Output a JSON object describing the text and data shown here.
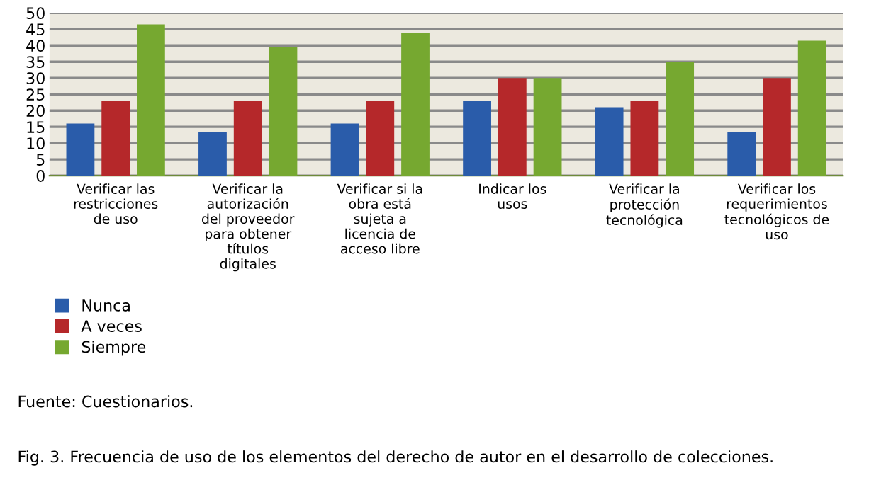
{
  "chart_data": {
    "type": "bar",
    "categories": [
      "Verificar las restricciones de uso",
      "Verificar la autorización del proveedor para obtener títulos digitales",
      "Verificar si la obra está sujeta a licencia de acceso libre",
      "Indicar los usos",
      "Verificar la protección tecnológica",
      "Verificar los requerimientos tecnológicos de uso"
    ],
    "series": [
      {
        "name": "Nunca",
        "color": "#2a5caa",
        "values": [
          16,
          13.5,
          16,
          23,
          21,
          13.5
        ]
      },
      {
        "name": "A veces",
        "color": "#b5282a",
        "values": [
          23,
          23,
          23,
          30,
          23,
          30
        ]
      },
      {
        "name": "Siempre",
        "color": "#76a830",
        "values": [
          46.5,
          39.5,
          44,
          30,
          35,
          41.5
        ]
      }
    ],
    "ylim": [
      0,
      50
    ],
    "yticks": [
      0,
      5,
      10,
      15,
      20,
      25,
      30,
      35,
      40,
      45,
      50
    ],
    "grid": "y",
    "legend": "bottom left",
    "annotations": [
      "Fuente: Cuestionarios.",
      "Fig. 3. Frecuencia de uso de los elementos del derecho de autor en el desarrollo de colecciones."
    ]
  }
}
